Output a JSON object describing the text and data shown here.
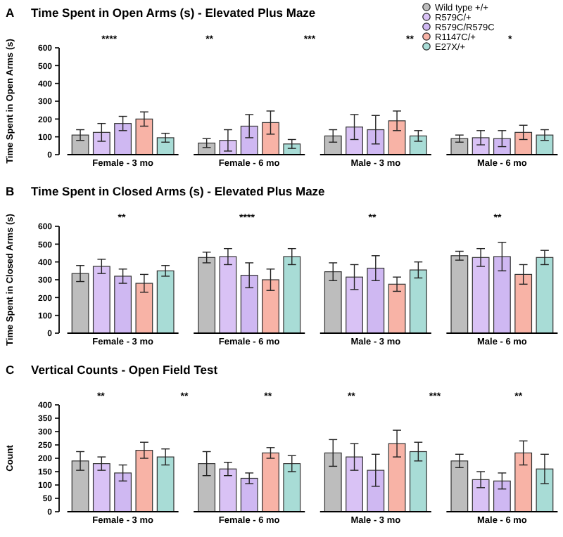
{
  "chart_data": [
    {
      "type": "bar",
      "title": "Time Spent in Open Arms (s) - Elevated Plus Maze",
      "ylabel": "Time Spent in Open Arms (s)",
      "categories": [
        "Female - 3 mo",
        "Female - 6 mo",
        "Male - 3 mo",
        "Male - 6 mo"
      ],
      "series": [
        {
          "name": "Wild type +/+",
          "color": "#bdbdbd",
          "values": [
            110,
            65,
            105,
            90
          ],
          "errors": [
            30,
            25,
            35,
            20
          ]
        },
        {
          "name": "R579C/+",
          "color": "#d9c2f5",
          "values": [
            125,
            80,
            155,
            95
          ],
          "errors": [
            50,
            60,
            70,
            40
          ]
        },
        {
          "name": "R579C/R579C",
          "color": "#cfb8f2",
          "values": [
            175,
            160,
            140,
            90
          ],
          "errors": [
            40,
            65,
            80,
            45
          ]
        },
        {
          "name": "R1147C/+",
          "color": "#f8b3a6",
          "values": [
            200,
            180,
            190,
            125
          ],
          "errors": [
            40,
            65,
            55,
            40
          ]
        },
        {
          "name": "E27X/+",
          "color": "#a8dcd6",
          "values": [
            95,
            60,
            105,
            110
          ],
          "errors": [
            25,
            25,
            30,
            30
          ]
        }
      ],
      "ylim": [
        0,
        600
      ],
      "yticks": [
        0,
        100,
        200,
        300,
        400,
        500,
        600
      ],
      "grid": false,
      "legend": "top right",
      "annotations": [
        "A",
        "****",
        "**",
        "***",
        "**",
        "*"
      ]
    },
    {
      "type": "bar",
      "title": "Time Spent in Closed Arms (s) - Elevated Plus Maze",
      "ylabel": "Time Spent in Closed Arms (s)",
      "categories": [
        "Female - 3 mo",
        "Female - 6 mo",
        "Male - 3 mo",
        "Male - 6 mo"
      ],
      "series": [
        {
          "color": "#bdbdbd",
          "values": [
            335,
            425,
            345,
            435
          ],
          "errors": [
            45,
            30,
            50,
            25
          ]
        },
        {
          "color": "#d9c2f5",
          "values": [
            375,
            430,
            315,
            425
          ],
          "errors": [
            40,
            45,
            70,
            50
          ]
        },
        {
          "color": "#cfb8f2",
          "values": [
            320,
            325,
            365,
            430
          ],
          "errors": [
            40,
            70,
            70,
            80
          ]
        },
        {
          "color": "#f8b3a6",
          "values": [
            280,
            300,
            275,
            330
          ],
          "errors": [
            50,
            60,
            40,
            55
          ]
        },
        {
          "color": "#a8dcd6",
          "values": [
            350,
            430,
            355,
            425
          ],
          "errors": [
            30,
            45,
            45,
            40
          ]
        }
      ],
      "ylim": [
        0,
        600
      ],
      "yticks": [
        0,
        100,
        200,
        300,
        400,
        500,
        600
      ],
      "grid": false,
      "annotations": [
        "B",
        "**",
        "****",
        "**",
        "**"
      ]
    },
    {
      "type": "bar",
      "title": "Vertical Counts - Open Field Test",
      "ylabel": "Count",
      "categories": [
        "Female - 3 mo",
        "Female - 6 mo",
        "Male - 3 mo",
        "Male - 6 mo"
      ],
      "series": [
        {
          "color": "#bdbdbd",
          "values": [
            190,
            180,
            220,
            190
          ],
          "errors": [
            35,
            45,
            50,
            25
          ]
        },
        {
          "color": "#d9c2f5",
          "values": [
            180,
            160,
            205,
            120
          ],
          "errors": [
            25,
            25,
            50,
            30
          ]
        },
        {
          "color": "#cfb8f2",
          "values": [
            145,
            125,
            155,
            115
          ],
          "errors": [
            30,
            20,
            60,
            30
          ]
        },
        {
          "color": "#f8b3a6",
          "values": [
            230,
            220,
            255,
            220
          ],
          "errors": [
            30,
            20,
            50,
            45
          ]
        },
        {
          "color": "#a8dcd6",
          "values": [
            205,
            180,
            225,
            160
          ],
          "errors": [
            30,
            30,
            35,
            55
          ]
        }
      ],
      "ylim": [
        0,
        400
      ],
      "yticks": [
        0,
        50,
        100,
        150,
        200,
        250,
        300,
        350,
        400
      ],
      "grid": false,
      "annotations": [
        "C",
        "**",
        "**",
        "**",
        "**",
        "***",
        "**"
      ]
    }
  ]
}
